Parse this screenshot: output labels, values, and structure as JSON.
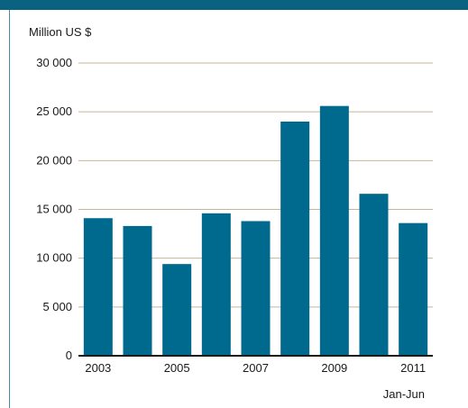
{
  "colors": {
    "bar": "#006a8e",
    "grid": "#c8b49a",
    "axis": "#1a1a1a",
    "frame": "#0a6180"
  },
  "chart_data": {
    "type": "bar",
    "title": "",
    "ylabel": "Million US $",
    "xlabel": "",
    "x_note": "Jan-Jun",
    "categories": [
      "2003",
      "2004",
      "2005",
      "2006",
      "2007",
      "2008",
      "2009",
      "2010",
      "2011"
    ],
    "tick_labels_shown": [
      "2003",
      "2005",
      "2007",
      "2009",
      "2011"
    ],
    "values": [
      14100,
      13300,
      9400,
      14600,
      13800,
      24000,
      25600,
      16600,
      13600
    ],
    "ylim": [
      0,
      30000
    ],
    "yticks": [
      0,
      5000,
      10000,
      15000,
      20000,
      25000,
      30000
    ],
    "ytick_labels": [
      "0",
      "5 000",
      "10 000",
      "15 000",
      "20 000",
      "25 000",
      "30 000"
    ],
    "grid": true,
    "legend": "none"
  }
}
